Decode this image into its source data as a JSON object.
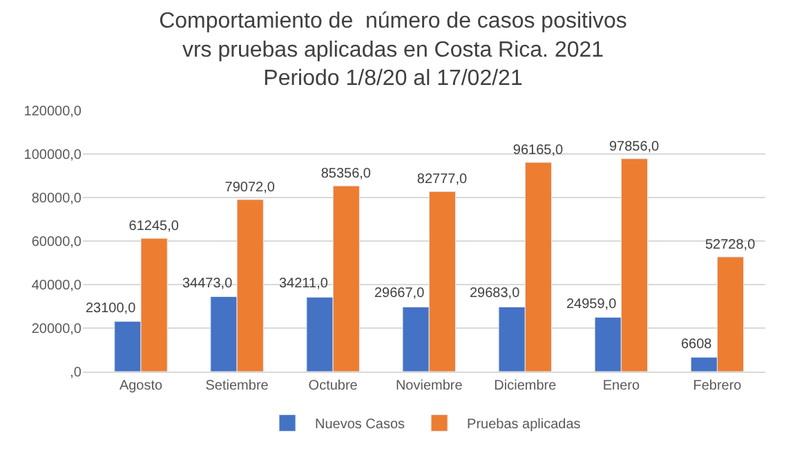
{
  "chart_data": {
    "type": "bar",
    "title": "Comportamiento de  número de casos positivos\nvrs pruebas aplicadas en Costa Rica. 2021\nPeriodo 1/8/20 al 17/02/21",
    "categories": [
      "Agosto",
      "Setiembre",
      "Octubre",
      "Noviembre",
      "Diciembre",
      "Enero",
      "Febrero"
    ],
    "series": [
      {
        "name": "Nuevos Casos",
        "color": "#4472c4",
        "values": [
          23100,
          34473,
          34211,
          29667,
          29683,
          24959,
          6608
        ],
        "value_labels": [
          "23100,0",
          "34473,0",
          "34211,0",
          "29667,0",
          "29683,0",
          "24959,0",
          "6608"
        ]
      },
      {
        "name": "Pruebas aplicadas",
        "color": "#ed7d31",
        "values": [
          61245,
          79072,
          85356,
          82777,
          96165,
          97856,
          52728
        ],
        "value_labels": [
          "61245,0",
          "79072,0",
          "85356,0",
          "82777,0",
          "96165,0",
          "97856,0",
          "52728,0"
        ]
      }
    ],
    "ylim": [
      0,
      120000
    ],
    "yticks": [
      {
        "value": 0,
        "label": ",0"
      },
      {
        "value": 20000,
        "label": "20000,0"
      },
      {
        "value": 40000,
        "label": "40000,0"
      },
      {
        "value": 60000,
        "label": "60000,0"
      },
      {
        "value": 80000,
        "label": "80000,0"
      },
      {
        "value": 100000,
        "label": "100000,0"
      },
      {
        "value": 120000,
        "label": "120000,0"
      }
    ],
    "grid": "y",
    "legend": "bottom"
  }
}
